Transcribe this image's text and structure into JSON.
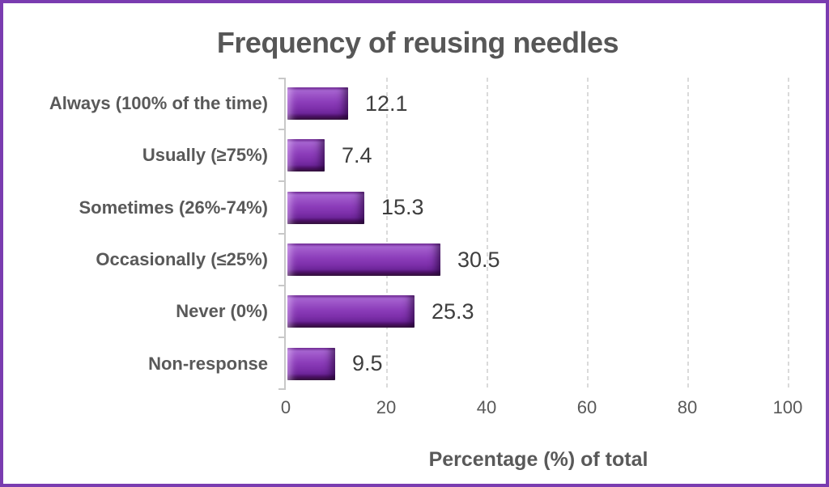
{
  "window": {
    "border_color": "#7a3cb0",
    "background": "#ffffff"
  },
  "chart_data": {
    "type": "bar",
    "orientation": "horizontal",
    "title": "Frequency of reusing needles",
    "categories": [
      "Always (100% of the time)",
      "Usually (≥75%)",
      "Sometimes (26%-74%)",
      "Occasionally (≤25%)",
      "Never (0%)",
      "Non-response"
    ],
    "values": [
      12.1,
      7.4,
      15.3,
      30.5,
      25.3,
      9.5
    ],
    "value_labels": [
      "12.1",
      "7.4",
      "15.3",
      "30.5",
      "25.3",
      "9.5"
    ],
    "xlabel": "Percentage (%) of total",
    "x_ticks": [
      "0",
      "20",
      "40",
      "60",
      "80",
      "100"
    ],
    "xlim": [
      0,
      100
    ],
    "grid": "vertical-dashed",
    "legend": "none",
    "colors": {
      "bar_mid": "#8c3dba",
      "bar_light": "#a765d2",
      "bar_dark": "#2a0833",
      "title_text": "#575757",
      "category_text": "#595959",
      "tick_text": "#595959",
      "value_text": "#3e3e3e",
      "axis_line": "#c8c8c8",
      "gridline": "#dadada"
    }
  }
}
